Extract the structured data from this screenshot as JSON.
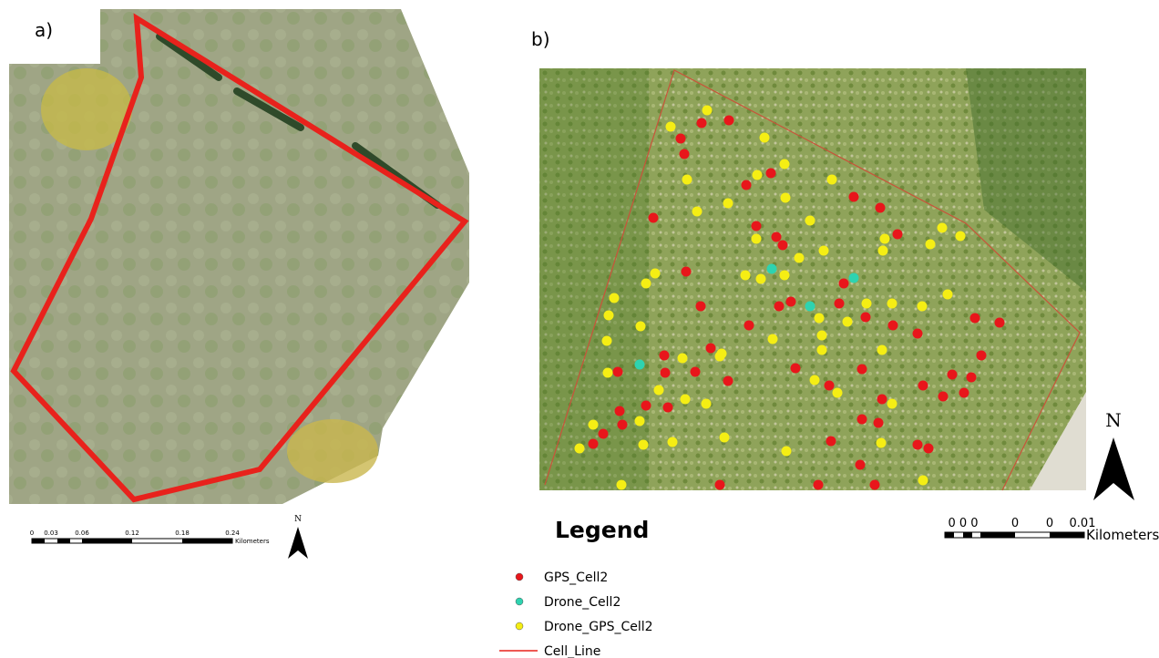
{
  "panel_a": {
    "label": "a)",
    "scale_labels": [
      "0",
      "0.03",
      "0.06",
      "0.12",
      "0.18",
      "0.24"
    ],
    "scale_unit": "Kilometers",
    "north": "N"
  },
  "panel_b": {
    "label": "b)",
    "scale_labels": [
      "0 0 0",
      "0",
      "0",
      "0.01"
    ],
    "scale_unit": "Kilometers",
    "north": "N"
  },
  "legend": {
    "title": "Legend",
    "items": [
      "GPS_Cell2",
      "Drone_Cell2",
      "Drone_GPS_Cell2",
      "Cell_Line"
    ]
  }
}
